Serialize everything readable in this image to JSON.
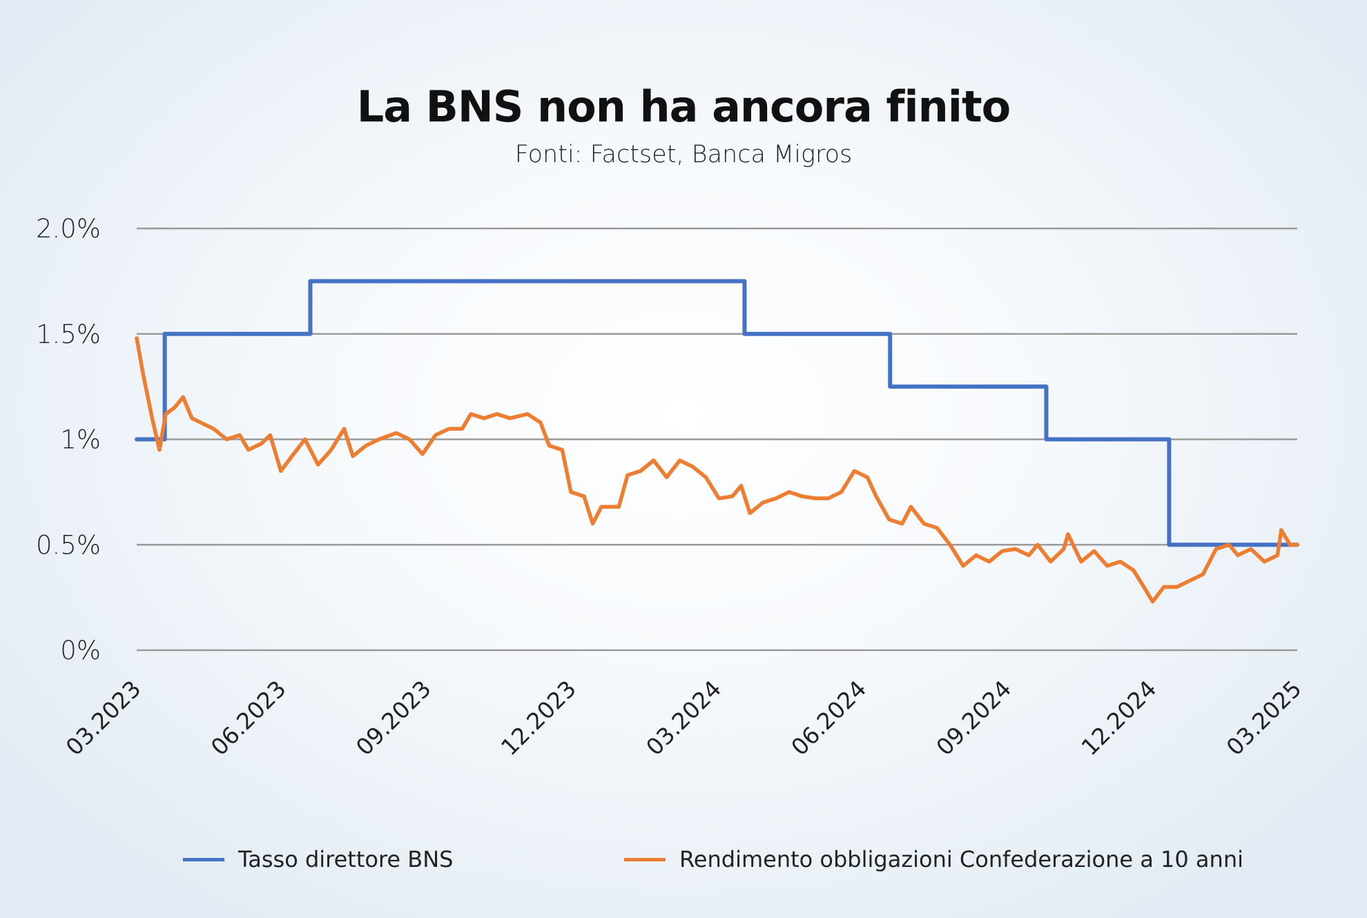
{
  "chart_data": {
    "type": "line",
    "title": "La BNS non ha ancora finito",
    "subtitle": "Fonti: Factset, Banca Migros",
    "xlabel": "",
    "ylabel": "",
    "x_unit": "months since 03.2023",
    "xlim": [
      0,
      24
    ],
    "ylim": [
      0,
      2.0
    ],
    "grid": true,
    "y_ticks": [
      {
        "value": 0,
        "label": "0%"
      },
      {
        "value": 0.5,
        "label": "0.5%"
      },
      {
        "value": 1.0,
        "label": "1%"
      },
      {
        "value": 1.5,
        "label": "1.5%"
      },
      {
        "value": 2.0,
        "label": "2.0%"
      }
    ],
    "x_ticks": [
      {
        "value": 0,
        "label": "03.2023"
      },
      {
        "value": 3,
        "label": "06.2023"
      },
      {
        "value": 6,
        "label": "09.2023"
      },
      {
        "value": 9,
        "label": "12.2023"
      },
      {
        "value": 12,
        "label": "03.2024"
      },
      {
        "value": 15,
        "label": "06.2024"
      },
      {
        "value": 18,
        "label": "09.2024"
      },
      {
        "value": 21,
        "label": "12.2024"
      },
      {
        "value": 24,
        "label": "03.2025"
      }
    ],
    "legend_position": "bottom",
    "series": [
      {
        "name": "Tasso direttore BNS",
        "color": "#4472c4",
        "step": true,
        "x": [
          0,
          0.58,
          3.59,
          12.57,
          15.58,
          18.81,
          21.35,
          24
        ],
        "y": [
          1.0,
          1.5,
          1.75,
          1.5,
          1.25,
          1.0,
          0.5,
          0.5
        ]
      },
      {
        "name": "Rendimento obbligazioni Confederazione a 10 anni",
        "color": "#ed7d31",
        "step": false,
        "x": [
          0,
          0.14,
          0.32,
          0.47,
          0.6,
          0.78,
          0.96,
          1.14,
          1.32,
          1.59,
          1.86,
          2.13,
          2.31,
          2.58,
          2.76,
          2.98,
          3.21,
          3.48,
          3.75,
          4.02,
          4.29,
          4.47,
          4.74,
          5.01,
          5.37,
          5.64,
          5.91,
          6.18,
          6.46,
          6.73,
          6.91,
          7.18,
          7.45,
          7.72,
          8.08,
          8.35,
          8.53,
          8.8,
          8.98,
          9.25,
          9.43,
          9.61,
          9.97,
          10.15,
          10.42,
          10.69,
          10.96,
          11.23,
          11.5,
          11.77,
          12.04,
          12.32,
          12.5,
          12.68,
          12.95,
          13.22,
          13.49,
          13.76,
          14.03,
          14.3,
          14.57,
          14.84,
          15.11,
          15.29,
          15.56,
          15.83,
          16.01,
          16.28,
          16.55,
          16.82,
          17.09,
          17.36,
          17.63,
          17.9,
          18.17,
          18.45,
          18.63,
          18.9,
          19.17,
          19.26,
          19.53,
          19.8,
          20.07,
          20.34,
          20.61,
          20.88,
          21.01,
          21.24,
          21.51,
          21.78,
          22.05,
          22.32,
          22.59,
          22.77,
          23.04,
          23.32,
          23.59,
          23.67,
          23.85,
          24
        ],
        "y": [
          1.48,
          1.3,
          1.1,
          0.95,
          1.12,
          1.15,
          1.2,
          1.1,
          1.08,
          1.05,
          1.0,
          1.02,
          0.95,
          0.98,
          1.02,
          0.85,
          0.92,
          1.0,
          0.88,
          0.95,
          1.05,
          0.92,
          0.97,
          1.0,
          1.03,
          1.0,
          0.93,
          1.02,
          1.05,
          1.05,
          1.12,
          1.1,
          1.12,
          1.1,
          1.12,
          1.08,
          0.97,
          0.95,
          0.75,
          0.73,
          0.6,
          0.68,
          0.68,
          0.83,
          0.85,
          0.9,
          0.82,
          0.9,
          0.87,
          0.82,
          0.72,
          0.73,
          0.78,
          0.65,
          0.7,
          0.72,
          0.75,
          0.73,
          0.72,
          0.72,
          0.75,
          0.85,
          0.82,
          0.73,
          0.62,
          0.6,
          0.68,
          0.6,
          0.58,
          0.5,
          0.4,
          0.45,
          0.42,
          0.47,
          0.48,
          0.45,
          0.5,
          0.42,
          0.48,
          0.55,
          0.42,
          0.47,
          0.4,
          0.42,
          0.38,
          0.28,
          0.23,
          0.3,
          0.3,
          0.33,
          0.36,
          0.48,
          0.5,
          0.45,
          0.48,
          0.42,
          0.45,
          0.57,
          0.5,
          0.5
        ]
      }
    ]
  }
}
